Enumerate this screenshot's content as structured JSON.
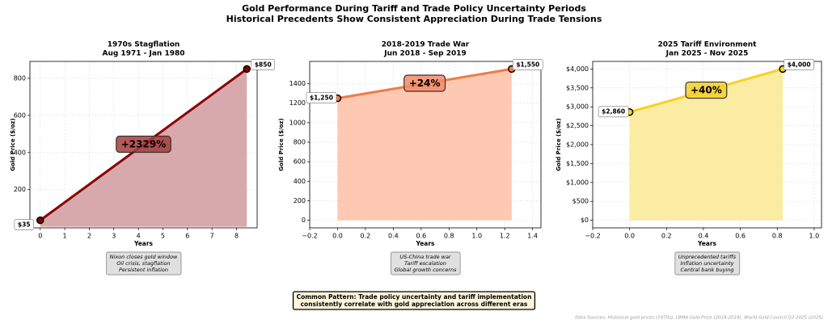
{
  "title": "Gold Performance During Tariff and Trade Policy Uncertainty Periods",
  "subtitle": "Historical Precedents Show Consistent Appreciation During Trade Tensions",
  "pattern_note": [
    "Common Pattern: Trade policy uncertainty and tariff implementation",
    "consistently correlate with gold appreciation across different eras"
  ],
  "source": "Data Sources: Historical gold prices (1970s), LBMA Gold Price (2018-2019), World Gold Council Q3 2025 (2025)",
  "chart_data": [
    {
      "type": "line",
      "title": "1970s Stagflation",
      "subtitle": "Aug 1971 - Jan 1980",
      "xlabel": "Years",
      "ylabel": "Gold Price ($/oz)",
      "x": [
        0,
        8.42
      ],
      "values": [
        35,
        850
      ],
      "value_labels": [
        "$35",
        "$850"
      ],
      "annotation": "+2329%",
      "color": "#8b0000",
      "fill_color": "#d7a9ac",
      "box_color": "#a83c3c",
      "xlim": [
        -0.42,
        8.84
      ],
      "ylim": [
        -5.75,
        890.75
      ],
      "xticks": [
        0,
        1,
        2,
        3,
        4,
        5,
        6,
        7,
        8
      ],
      "yticks": [
        200,
        400,
        600,
        800
      ],
      "grid": true,
      "notes": [
        "Nixon closes gold window",
        "Oil crisis, stagflation",
        "Persistent inflation"
      ]
    },
    {
      "type": "line",
      "title": "2018-2019 Trade War",
      "subtitle": "Jun 2018 - Sep 2019",
      "xlabel": "Years",
      "ylabel": "Gold Price ($/oz)",
      "x": [
        0,
        1.25
      ],
      "values": [
        1250,
        1550
      ],
      "value_labels": [
        "$1,250",
        "$1,550"
      ],
      "annotation": "+24%",
      "color": "#f07b48",
      "fill_color": "#fdc9b3",
      "box_color": "#f48a66",
      "xlim": [
        -0.2,
        1.46
      ],
      "ylim": [
        -77.5,
        1627.5
      ],
      "xticks": [
        {
          "value": -0.2,
          "label": "−0.2"
        },
        {
          "value": 0,
          "label": "0.0"
        },
        {
          "value": 0.2,
          "label": "0.2"
        },
        {
          "value": 0.4,
          "label": "0.4"
        },
        {
          "value": 0.6,
          "label": "0.6"
        },
        {
          "value": 0.8,
          "label": "0.8"
        },
        {
          "value": 1,
          "label": "1.0"
        },
        {
          "value": 1.2,
          "label": "1.2"
        },
        {
          "value": 1.4,
          "label": "1.4"
        }
      ],
      "yticks": [
        0,
        200,
        400,
        600,
        800,
        1000,
        1200,
        1400
      ],
      "grid": true,
      "notes": [
        "US-China trade war",
        "Tariff escalation",
        "Global growth concerns"
      ]
    },
    {
      "type": "line",
      "title": "2025 Tariff Environment",
      "subtitle": "Jan 2025 - Nov 2025",
      "xlabel": "Years",
      "ylabel": "Gold Price ($/oz)",
      "x": [
        0,
        0.83
      ],
      "values": [
        2860,
        4000
      ],
      "value_labels": [
        "$2,860",
        "$4,000"
      ],
      "annotation": "+40%",
      "color": "#f7d21e",
      "fill_color": "#fbeca3",
      "box_color": "#f3cf2a",
      "xlim": [
        -0.2,
        1.04
      ],
      "ylim": [
        -200,
        4200
      ],
      "xticks": [
        {
          "value": -0.2,
          "label": "−0.2"
        },
        {
          "value": 0,
          "label": "0.0"
        },
        {
          "value": 0.2,
          "label": "0.2"
        },
        {
          "value": 0.4,
          "label": "0.4"
        },
        {
          "value": 0.6,
          "label": "0.6"
        },
        {
          "value": 0.8,
          "label": "0.8"
        },
        {
          "value": 1,
          "label": "1.0"
        }
      ],
      "yticks": [
        {
          "value": 0,
          "label": "$0"
        },
        {
          "value": 500,
          "label": "$500"
        },
        {
          "value": 1000,
          "label": "$1,000"
        },
        {
          "value": 1500,
          "label": "$1,500"
        },
        {
          "value": 2000,
          "label": "$2,000"
        },
        {
          "value": 2500,
          "label": "$2,500"
        },
        {
          "value": 3000,
          "label": "$3,000"
        },
        {
          "value": 3500,
          "label": "$3,500"
        },
        {
          "value": 4000,
          "label": "$4,000"
        }
      ],
      "grid": true,
      "notes": [
        "Unprecedented tariffs",
        "Inflation uncertainty",
        "Central bank buying"
      ]
    }
  ]
}
